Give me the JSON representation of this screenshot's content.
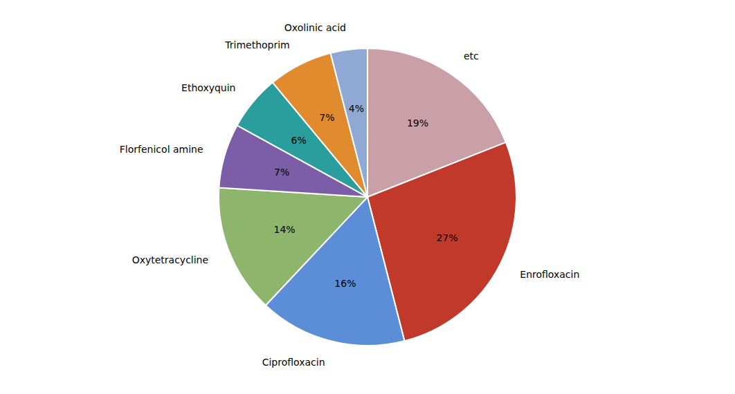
{
  "chart_data": {
    "type": "pie",
    "categories": [
      "etc",
      "Enrofloxacin",
      "Ciprofloxacin",
      "Oxytetracycline",
      "Florfenicol amine",
      "Ethoxyquin",
      "Trimethoprim",
      "Oxolinic acid"
    ],
    "values": [
      19,
      27,
      16,
      14,
      7,
      6,
      7,
      4
    ],
    "value_labels": [
      "19%",
      "27%",
      "16%",
      "14%",
      "7%",
      "6%",
      "7%",
      "4%"
    ],
    "colors": [
      "#c9a0a8",
      "#c0392b",
      "#5b8ed6",
      "#8db56b",
      "#7b5ea7",
      "#2a9d9d",
      "#e08c2e",
      "#8fa8d4"
    ],
    "data_labels": true
  }
}
